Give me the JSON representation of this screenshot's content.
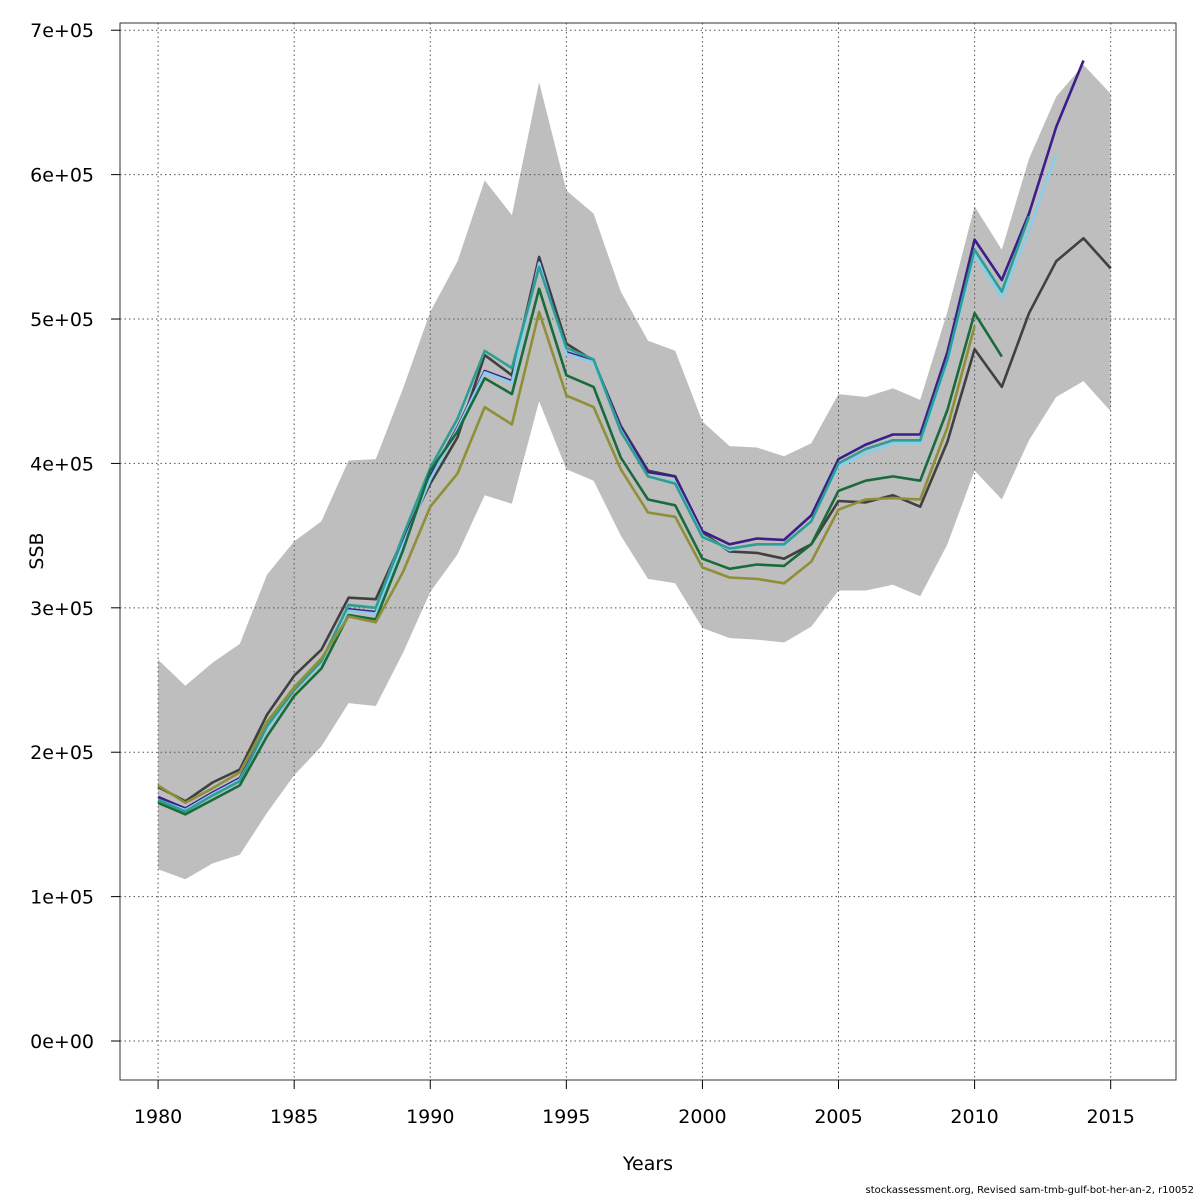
{
  "chart_data": {
    "type": "line",
    "title": "",
    "xlabel": "Years",
    "ylabel": "SSB",
    "xlim": [
      1978.6,
      1977.3
    ],
    "ylim": [
      -27000,
      705000
    ],
    "x_ticks": [
      1980,
      1985,
      1990,
      1995,
      2000,
      2005,
      2010,
      2015
    ],
    "x_tick_labels": [
      "1980",
      "1985",
      "1990",
      "1995",
      "2000",
      "2005",
      "2010",
      "2015"
    ],
    "y_ticks": [
      0,
      100000,
      200000,
      300000,
      400000,
      500000,
      600000,
      700000
    ],
    "y_tick_labels": [
      "0e+00",
      "1e+05",
      "2e+05",
      "3e+05",
      "4e+05",
      "5e+05",
      "6e+05",
      "7e+05"
    ],
    "grid": true,
    "band": {
      "color": "#bebebe",
      "x": [
        1980,
        1981,
        1982,
        1983,
        1984,
        1985,
        1986,
        1987,
        1988,
        1989,
        1990,
        1991,
        1992,
        1993,
        1994,
        1995,
        1996,
        1997,
        1998,
        1999,
        2000,
        2001,
        2002,
        2003,
        2004,
        2005,
        2006,
        2007,
        2008,
        2009,
        2010,
        2011,
        2012,
        2013,
        2014,
        2015
      ],
      "upper": [
        264000,
        246000,
        262000,
        275000,
        323000,
        346000,
        360000,
        402000,
        403000,
        452000,
        505000,
        540000,
        596000,
        572000,
        664000,
        589000,
        573000,
        519000,
        485000,
        478000,
        429000,
        412000,
        411000,
        405000,
        414000,
        448000,
        446000,
        452000,
        444000,
        505000,
        578000,
        548000,
        611000,
        654000,
        676000,
        656000
      ],
      "lower": [
        119000,
        112000,
        123000,
        129000,
        158000,
        184000,
        204000,
        234000,
        232000,
        269000,
        311000,
        337000,
        378000,
        372000,
        443000,
        396000,
        388000,
        350000,
        320000,
        317000,
        286000,
        279000,
        278000,
        276000,
        287000,
        312000,
        312000,
        316000,
        308000,
        344000,
        395000,
        375000,
        416000,
        446000,
        457000,
        436000
      ]
    },
    "series": [
      {
        "color": "#404040",
        "x": [
          1980,
          1981,
          1982,
          1983,
          1984,
          1985,
          1986,
          1987,
          1988,
          1989,
          1990,
          1991,
          1992,
          1993,
          1994,
          1995,
          1996,
          1997,
          1998,
          1999,
          2000,
          2001,
          2002,
          2003,
          2004,
          2005,
          2006,
          2007,
          2008,
          2009,
          2010,
          2011,
          2012,
          2013,
          2014,
          2015
        ],
        "values": [
          176000,
          166000,
          179000,
          188000,
          226000,
          253000,
          271000,
          307000,
          306000,
          348000,
          386000,
          418000,
          475000,
          461000,
          543000,
          483000,
          471000,
          426000,
          395000,
          391000,
          352000,
          339000,
          338000,
          334000,
          344000,
          374000,
          373000,
          378000,
          370000,
          415000,
          479000,
          453000,
          504000,
          540000,
          556000,
          535000
        ]
      },
      {
        "color": "#3b1e8a",
        "x": [
          1980,
          1981,
          1982,
          1983,
          1984,
          1985,
          1986,
          1987,
          1988,
          1989,
          1990,
          1991,
          1992,
          1993,
          1994,
          1995,
          1996,
          1997,
          1998,
          1999,
          2000,
          2001,
          2002,
          2003,
          2004,
          2005,
          2006,
          2007,
          2008,
          2009,
          2010,
          2011,
          2012,
          2013,
          2014
        ],
        "values": [
          169000,
          161000,
          172000,
          182000,
          217000,
          244000,
          263000,
          299000,
          297000,
          345000,
          391000,
          425000,
          464000,
          457000,
          540000,
          477000,
          471000,
          425000,
          394000,
          391000,
          353000,
          344000,
          348000,
          347000,
          364000,
          403000,
          413000,
          420000,
          420000,
          477000,
          555000,
          527000,
          573000,
          633000,
          679000
        ]
      },
      {
        "color": "#87ceeb",
        "x": [
          1980,
          1981,
          1982,
          1983,
          1984,
          1985,
          1986,
          1987,
          1988,
          1989,
          1990,
          1991,
          1992,
          1993,
          1994,
          1995,
          1996,
          1997,
          1998,
          1999,
          2000,
          2001,
          2002,
          2003,
          2004,
          2005,
          2006,
          2007,
          2008,
          2009,
          2010,
          2011,
          2012,
          2013
        ],
        "values": [
          167000,
          160000,
          171000,
          181000,
          216000,
          243000,
          262000,
          298000,
          296000,
          344000,
          389000,
          424000,
          463000,
          456000,
          539000,
          476000,
          470000,
          423000,
          391000,
          387000,
          350000,
          340000,
          344000,
          343000,
          360000,
          398000,
          407000,
          414000,
          414000,
          470000,
          545000,
          515000,
          562000,
          614000
        ]
      },
      {
        "color": "#2e9e92",
        "x": [
          1980,
          1981,
          1982,
          1983,
          1984,
          1985,
          1986,
          1987,
          1988,
          1989,
          1990,
          1991,
          1992,
          1993,
          1994,
          1995,
          1996,
          1997,
          1998,
          1999,
          2000,
          2001,
          2002,
          2003,
          2004,
          2005,
          2006,
          2007,
          2008,
          2009,
          2010,
          2011,
          2012
        ],
        "values": [
          167000,
          159000,
          170000,
          180000,
          218000,
          243000,
          263000,
          302000,
          300000,
          350000,
          397000,
          431000,
          478000,
          466000,
          536000,
          480000,
          472000,
          422000,
          391000,
          386000,
          349000,
          341000,
          344000,
          344000,
          360000,
          400000,
          410000,
          416000,
          416000,
          472000,
          548000,
          519000,
          571000
        ]
      },
      {
        "color": "#1a6b3c",
        "x": [
          1980,
          1981,
          1982,
          1983,
          1984,
          1985,
          1986,
          1987,
          1988,
          1989,
          1990,
          1991,
          1992,
          1993,
          1994,
          1995,
          1996,
          1997,
          1998,
          1999,
          2000,
          2001,
          2002,
          2003,
          2004,
          2005,
          2006,
          2007,
          2008,
          2009,
          2010,
          2011
        ],
        "values": [
          165000,
          157000,
          167000,
          177000,
          211000,
          239000,
          258000,
          295000,
          292000,
          340000,
          395000,
          422000,
          459000,
          448000,
          521000,
          461000,
          453000,
          404000,
          375000,
          371000,
          334000,
          327000,
          330000,
          329000,
          344000,
          381000,
          388000,
          391000,
          388000,
          437000,
          504000,
          474000
        ]
      },
      {
        "color": "#8f8f38",
        "x": [
          1980,
          1981,
          1982,
          1983,
          1984,
          1985,
          1986,
          1987,
          1988,
          1989,
          1990,
          1991,
          1992,
          1993,
          1994,
          1995,
          1996,
          1997,
          1998,
          1999,
          2000,
          2001,
          2002,
          2003,
          2004,
          2005,
          2006,
          2007,
          2008,
          2009,
          2010
        ],
        "values": [
          177000,
          165000,
          175000,
          186000,
          221000,
          245000,
          265000,
          294000,
          290000,
          325000,
          370000,
          393000,
          439000,
          427000,
          505000,
          447000,
          439000,
          396000,
          366000,
          363000,
          328000,
          321000,
          320000,
          317000,
          332000,
          368000,
          375000,
          376000,
          375000,
          425000,
          495000
        ]
      }
    ]
  },
  "footer": "stockassessment.org, Revised sam-tmb-gulf-bot-her-an-2, r10052"
}
